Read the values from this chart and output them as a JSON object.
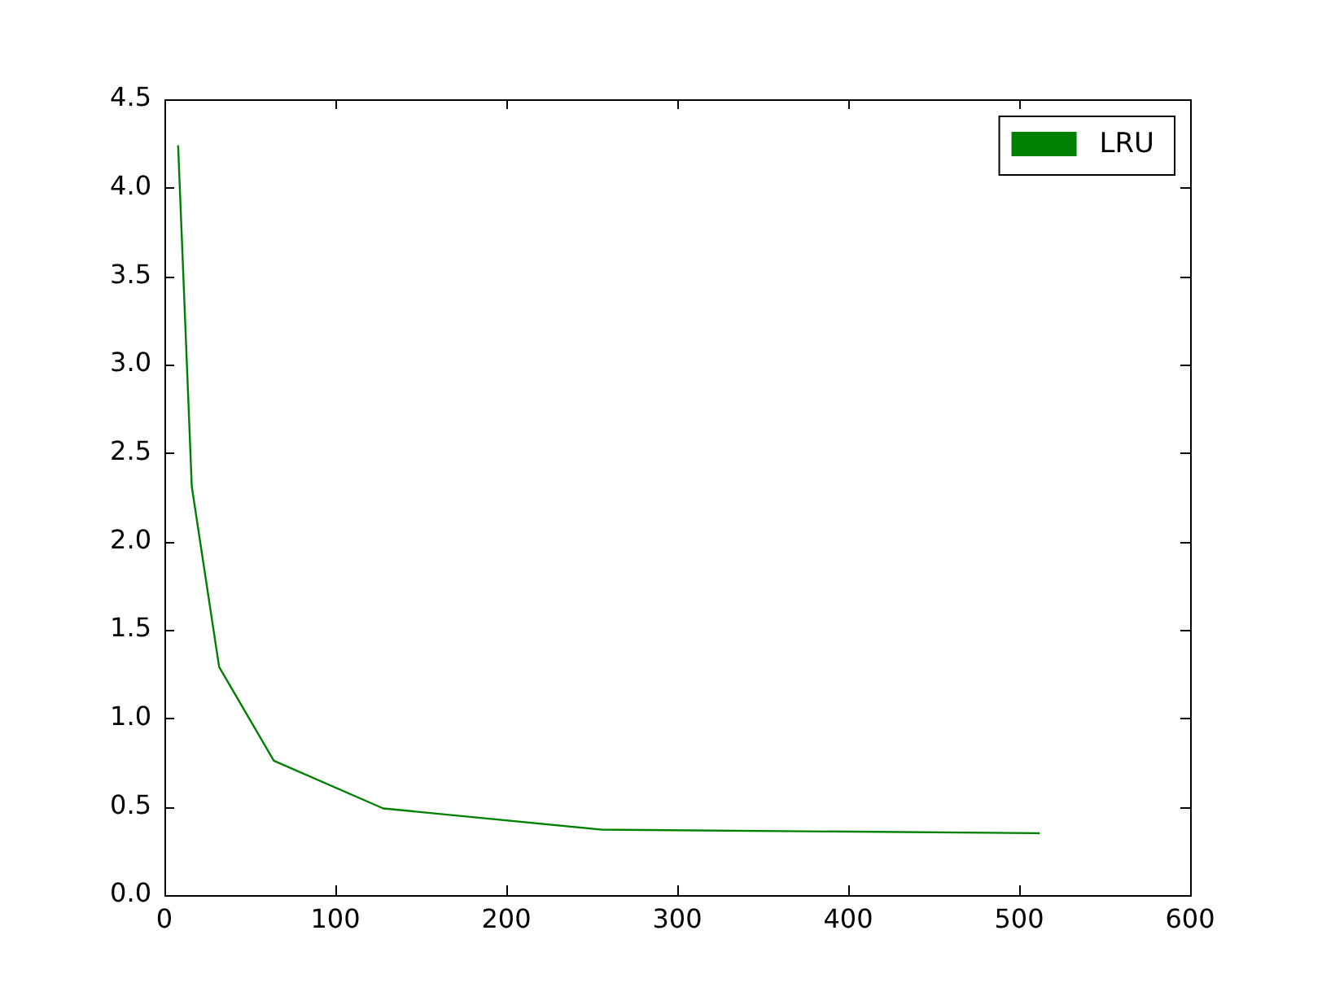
{
  "chart_data": {
    "type": "line",
    "x": [
      8,
      16,
      32,
      64,
      128,
      256,
      512
    ],
    "series": [
      {
        "name": "LRU",
        "color": "#008000",
        "values": [
          4.24,
          2.31,
          1.29,
          0.76,
          0.49,
          0.37,
          0.35
        ]
      }
    ],
    "xlim": [
      0,
      600
    ],
    "xticks": [
      0,
      100,
      200,
      300,
      400,
      500,
      600
    ],
    "ylim": [
      0,
      4.5
    ],
    "yticks": [
      {
        "value": 0,
        "label": "0.0"
      },
      {
        "value": 0.5,
        "label": "0.5"
      },
      {
        "value": 1,
        "label": "1.0"
      },
      {
        "value": 1.5,
        "label": "1.5"
      },
      {
        "value": 2,
        "label": "2.0"
      },
      {
        "value": 2.5,
        "label": "2.5"
      },
      {
        "value": 3,
        "label": "3.0"
      },
      {
        "value": 3.5,
        "label": "3.5"
      },
      {
        "value": 4,
        "label": "4.0"
      },
      {
        "value": 4.5,
        "label": "4.5"
      }
    ],
    "grid": false,
    "legend": "top right",
    "marker": "none",
    "line_style": "solid"
  }
}
